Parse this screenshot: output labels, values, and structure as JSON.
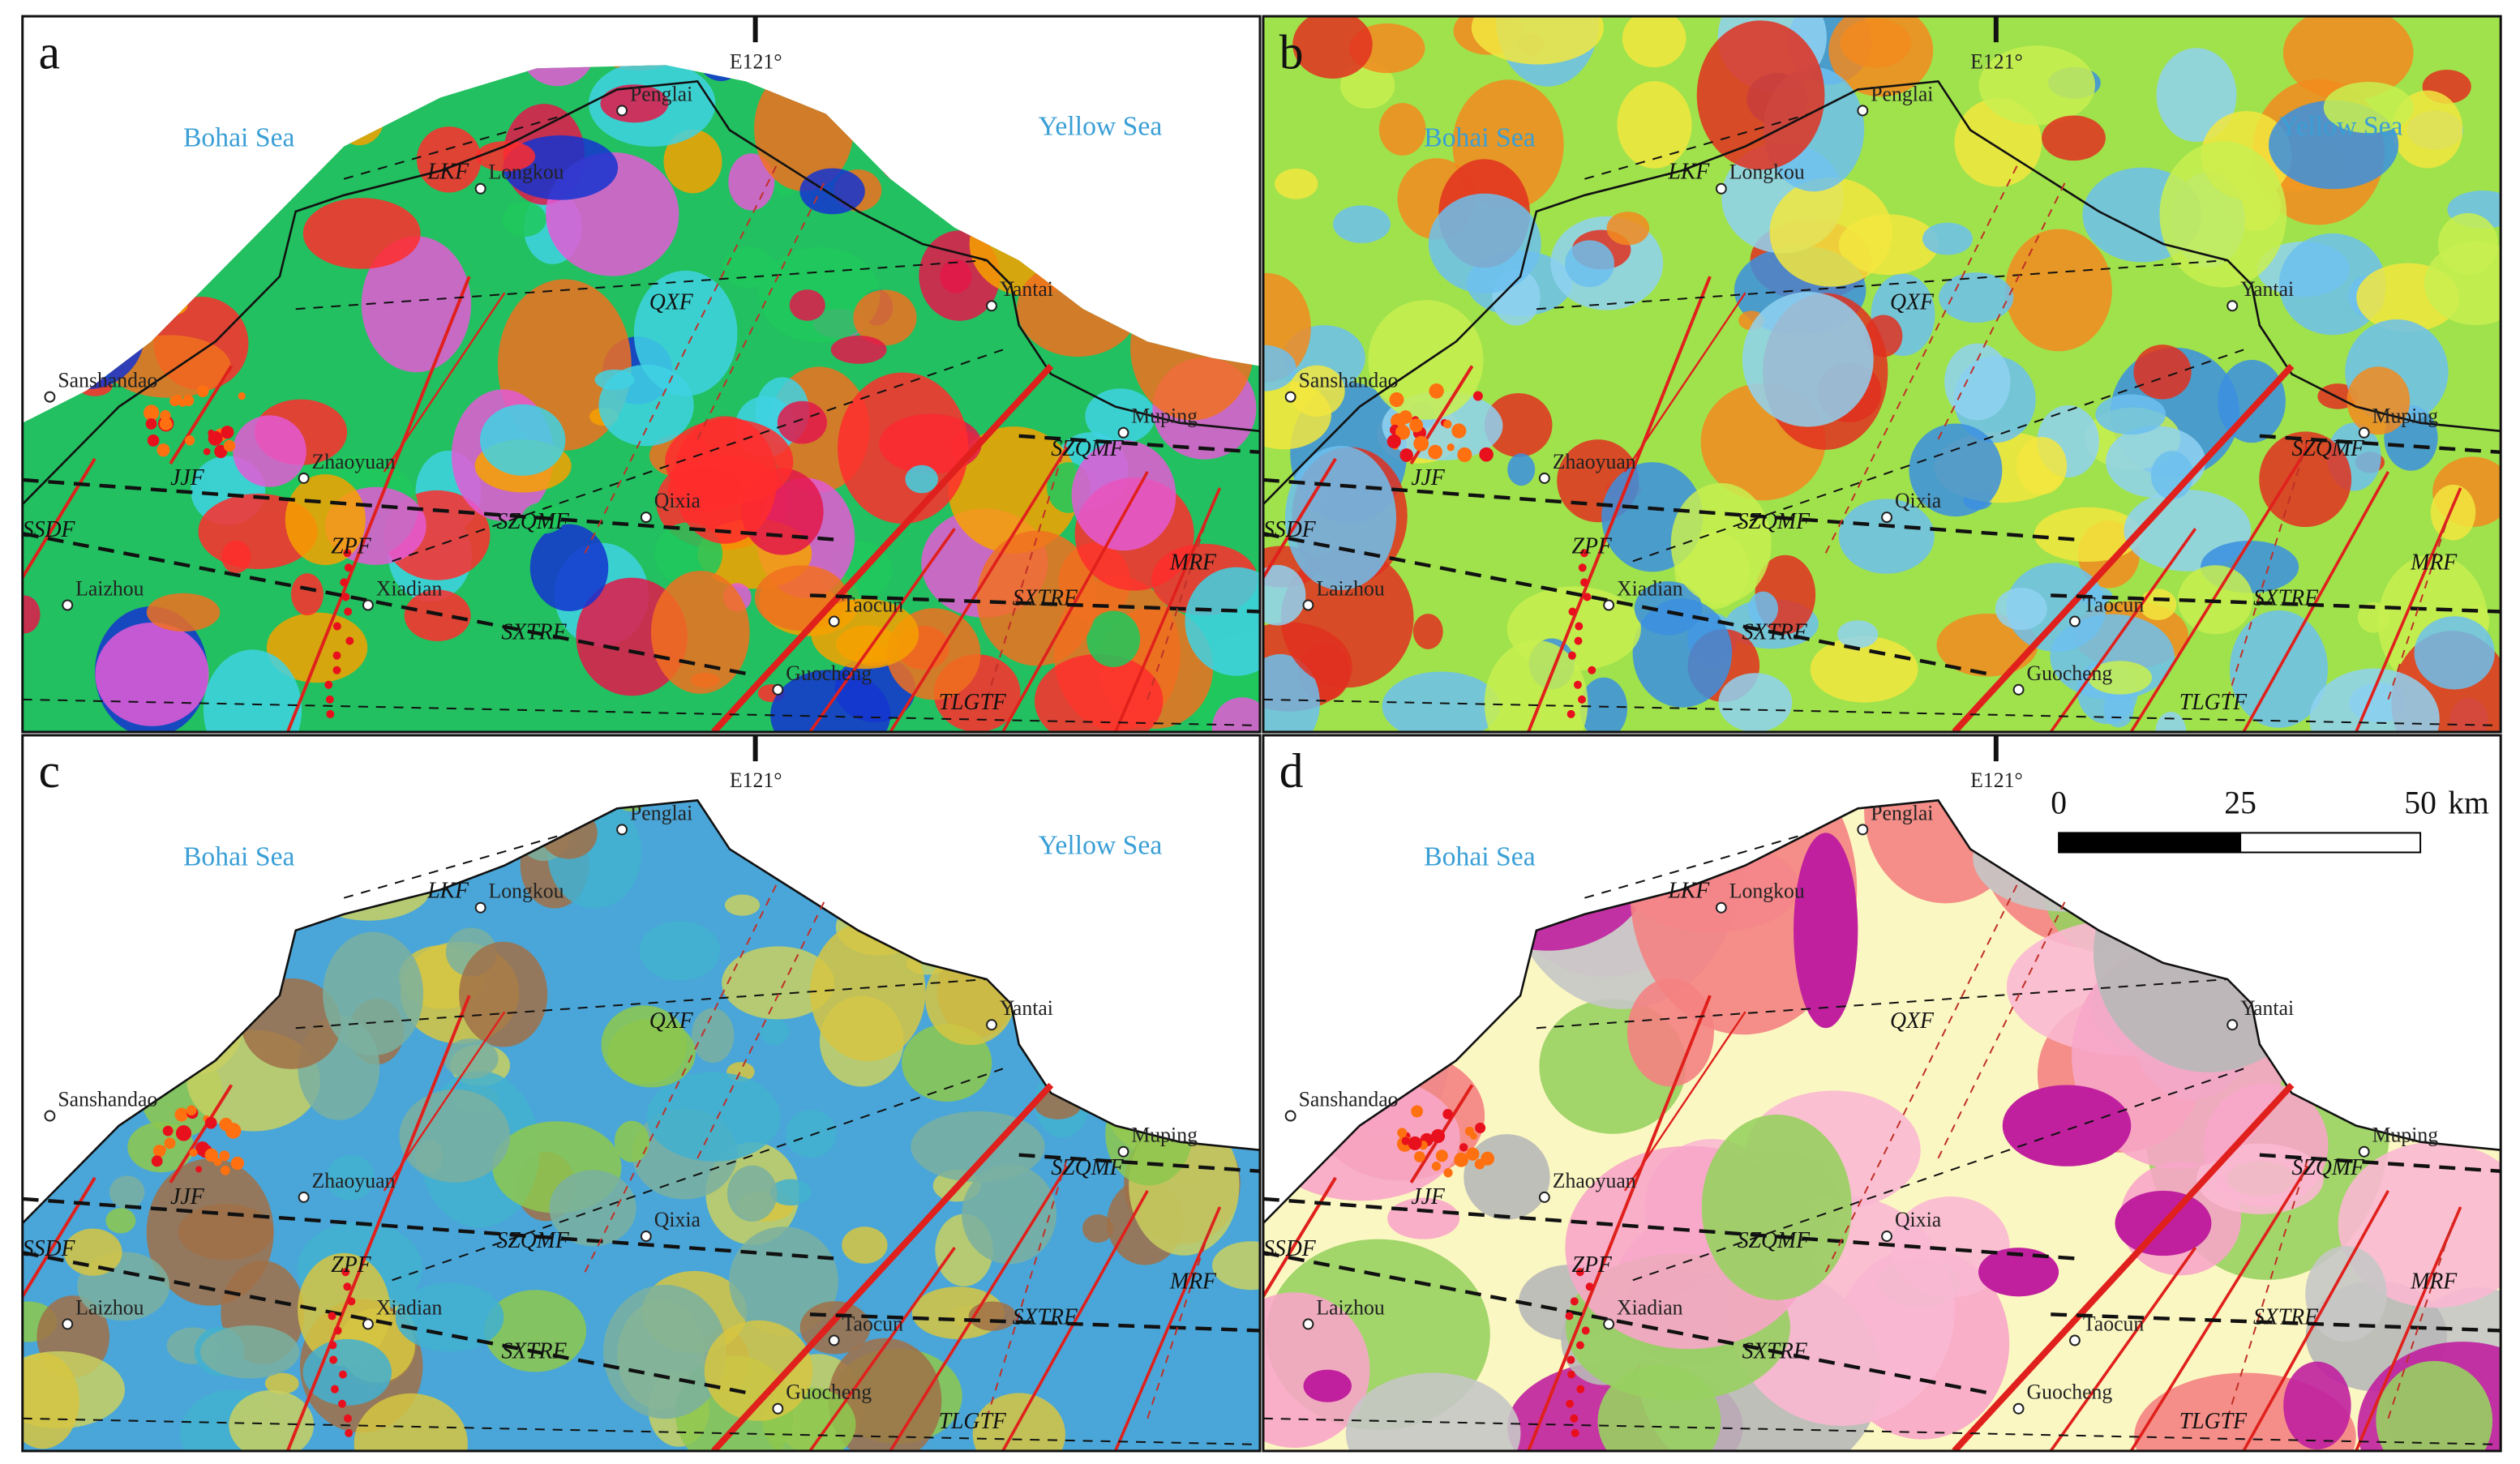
{
  "panels": [
    {
      "letter": "a",
      "meridian": "E121°",
      "sea_labels": [
        "Bohai Sea",
        "Yellow Sea"
      ],
      "place_labels": [
        "Penglai",
        "Longkou",
        "Yantai",
        "Sanshandao",
        "Zhaoyuan",
        "Qixia",
        "Laizhou",
        "Xiadian",
        "Taocun",
        "Guocheng",
        "Muping"
      ],
      "fault_labels": [
        "LKF",
        "QXF",
        "JJF",
        "SZQMF",
        "SSDF",
        "ZPF",
        "SXTRF",
        "SZQMF",
        "SXTRF",
        "TLGTF",
        "MRF"
      ]
    },
    {
      "letter": "b",
      "meridian": "E121°",
      "sea_labels": [
        "Bohai Sea",
        "Yellow Sea"
      ],
      "place_labels": [
        "Penglai",
        "Longkou",
        "Yantai",
        "Sanshandao",
        "Zhaoyuan",
        "Qixia",
        "Laizhou",
        "Xiadian",
        "Taocun",
        "Guocheng",
        "Muping"
      ],
      "fault_labels": [
        "LKF",
        "QXF",
        "JJF",
        "SZQMF",
        "SSDF",
        "ZPF",
        "SXTRF",
        "SZQMF",
        "SXTRF",
        "TLGTF",
        "MRF"
      ]
    },
    {
      "letter": "c",
      "meridian": "E121°",
      "sea_labels": [
        "Bohai Sea",
        "Yellow Sea"
      ],
      "place_labels": [
        "Penglai",
        "Longkou",
        "Yantai",
        "Sanshandao",
        "Zhaoyuan",
        "Qixia",
        "Laizhou",
        "Xiadian",
        "Taocun",
        "Guocheng",
        "Muping"
      ],
      "fault_labels": [
        "LKF",
        "QXF",
        "JJF",
        "SZQMF",
        "SSDF",
        "ZPF",
        "SXTRF",
        "SZQMF",
        "SXTRF",
        "TLGTF",
        "MRF"
      ]
    },
    {
      "letter": "d",
      "meridian": "E121°",
      "sea_labels": [
        "Bohai Sea"
      ],
      "place_labels": [
        "Penglai",
        "Longkou",
        "Yantai",
        "Sanshandao",
        "Zhaoyuan",
        "Qixia",
        "Laizhou",
        "Xiadian",
        "Taocun",
        "Guocheng",
        "Muping"
      ],
      "fault_labels": [
        "LKF",
        "QXF",
        "JJF",
        "SZQMF",
        "SSDF",
        "ZPF",
        "SXTRF",
        "SZQMF",
        "SXTRF",
        "TLGTF",
        "MRF"
      ]
    }
  ],
  "scale_bar": {
    "labels": [
      "0",
      "25",
      "50"
    ],
    "unit": "km"
  }
}
